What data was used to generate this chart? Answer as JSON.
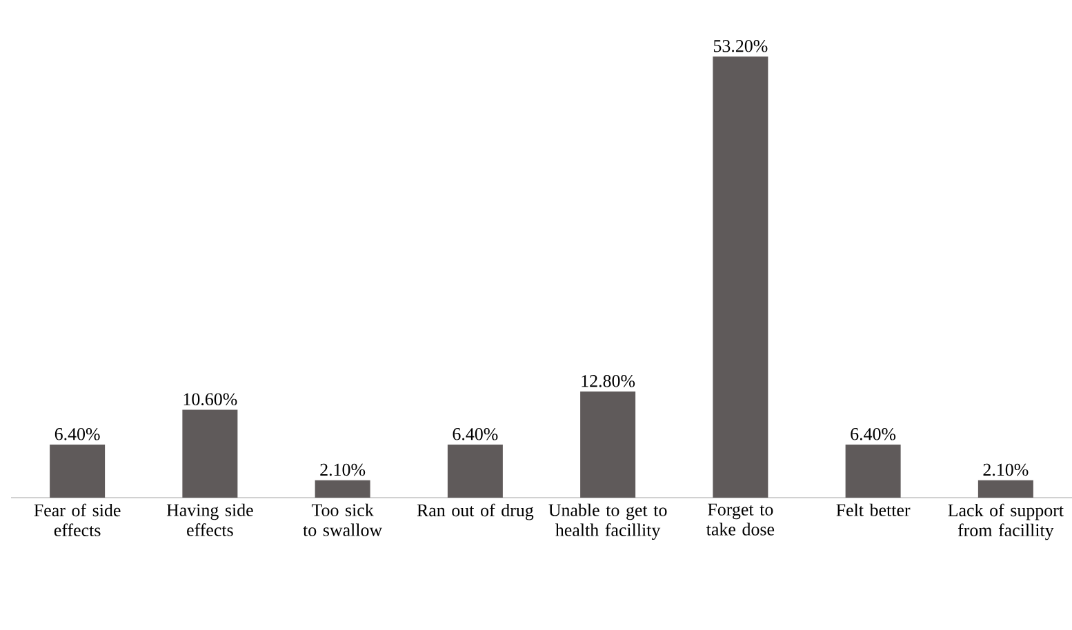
{
  "chart_data": {
    "type": "bar",
    "categories": [
      "Fear of side effects",
      "Having side effects",
      "Too sick to swallow",
      "Ran out of drug",
      "Unable to get to health facillity",
      "Forget to take dose",
      "Felt better",
      "Lack of support from facillity"
    ],
    "values": [
      6.4,
      10.6,
      2.1,
      6.4,
      12.8,
      53.2,
      6.4,
      2.1
    ],
    "value_labels": [
      "6.40%",
      "10.60%",
      "2.10%",
      "6.40%",
      "12.80%",
      "53.20%",
      "6.40%",
      "2.10%"
    ],
    "color": "#5f5a5a"
  }
}
